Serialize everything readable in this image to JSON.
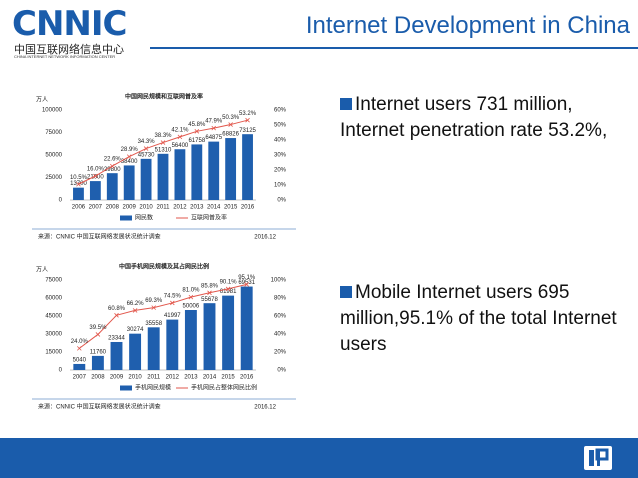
{
  "header": {
    "logo": "CNNIC",
    "org_cn": "中国互联网络信息中心",
    "org_en": "CHINA INTERNET NETWORK INFORMATION CENTER",
    "title": "Internet Development in China"
  },
  "bullets": [
    "Internet users 731 million, Internet penetration rate 53.2%,",
    "Mobile Internet users 695 million,95.1% of the total Internet users"
  ],
  "chart_data": [
    {
      "type": "bar",
      "title": "中国网民规模和互联网普及率",
      "ylabel": "万人",
      "categories": [
        "2006",
        "2007",
        "2008",
        "2009",
        "2010",
        "2011",
        "2012",
        "2013",
        "2014",
        "2015",
        "2016"
      ],
      "series": [
        {
          "name": "网民数",
          "color": "#1f5fae",
          "values": [
            13700,
            21000,
            29800,
            38400,
            45730,
            51310,
            56400,
            61758,
            64875,
            68826,
            73125
          ]
        },
        {
          "name": "互联网普及率",
          "type": "line",
          "axis": "y2",
          "color": "#e2574c",
          "values": [
            10.5,
            16.0,
            22.6,
            28.9,
            34.3,
            38.3,
            42.1,
            45.8,
            47.9,
            50.3,
            53.2
          ],
          "value_labels": [
            "10.5%",
            "16.0%",
            "22.6%",
            "28.9%",
            "34.3%",
            "38.3%",
            "42.1%",
            "45.8%",
            "47.9%",
            "50.3%",
            "53.2%"
          ]
        }
      ],
      "ylim": [
        0,
        100000
      ],
      "yticks": [
        0,
        25000,
        50000,
        75000,
        100000
      ],
      "y2lim": [
        0,
        60
      ],
      "y2ticks": [
        {
          "value": 0,
          "label": "0%"
        },
        {
          "value": 10,
          "label": "10%"
        },
        {
          "value": 20,
          "label": "20%"
        },
        {
          "value": 30,
          "label": "30%"
        },
        {
          "value": 40,
          "label": "40%"
        },
        {
          "value": 50,
          "label": "50%"
        },
        {
          "value": 60,
          "label": "60%"
        }
      ],
      "grid": false,
      "source": "来源：CNNIC 中国互联网络发展状况统计调查",
      "date": "2016.12"
    },
    {
      "type": "bar",
      "title": "中国手机网民规模及其占网民比例",
      "ylabel": "万人",
      "categories": [
        "2007",
        "2008",
        "2009",
        "2010",
        "2011",
        "2012",
        "2013",
        "2014",
        "2015",
        "2016"
      ],
      "series": [
        {
          "name": "手机网民规模",
          "color": "#1f5fae",
          "values": [
            5040,
            11760,
            23344,
            30274,
            35558,
            41997,
            50006,
            55678,
            61981,
            69531
          ]
        },
        {
          "name": "手机网民占整体网民比例",
          "type": "line",
          "axis": "y2",
          "color": "#e2574c",
          "values": [
            24.0,
            39.5,
            60.8,
            66.2,
            69.3,
            74.5,
            81.0,
            85.8,
            90.1,
            95.1
          ],
          "value_labels": [
            "24.0%",
            "39.5%",
            "60.8%",
            "66.2%",
            "69.3%",
            "74.5%",
            "81.0%",
            "85.8%",
            "90.1%",
            "95.1%"
          ]
        }
      ],
      "ylim": [
        0,
        75000
      ],
      "yticks": [
        0,
        15000,
        30000,
        45000,
        60000,
        75000
      ],
      "y2lim": [
        0,
        100
      ],
      "y2ticks": [
        {
          "value": 0,
          "label": "0%"
        },
        {
          "value": 20,
          "label": "20%"
        },
        {
          "value": 40,
          "label": "40%"
        },
        {
          "value": 60,
          "label": "60%"
        },
        {
          "value": 80,
          "label": "80%"
        },
        {
          "value": 100,
          "label": "100%"
        }
      ],
      "grid": false,
      "source": "来源：CNNIC 中国互联网络发展状况统计调查",
      "date": "2016.12"
    }
  ]
}
